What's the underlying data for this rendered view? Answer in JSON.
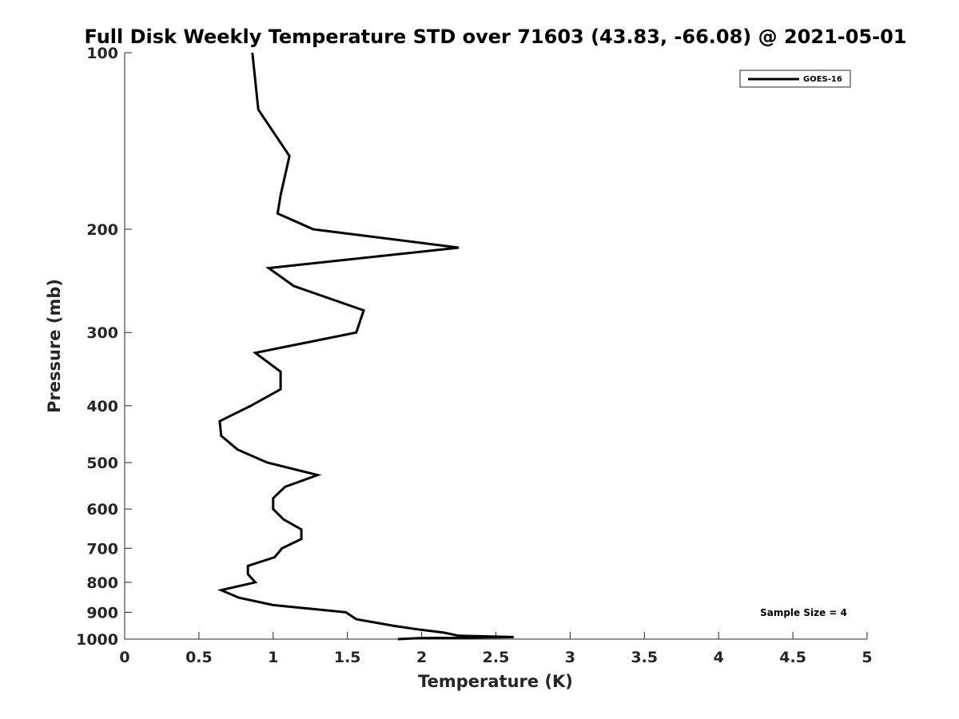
{
  "chart_data": {
    "type": "line",
    "title": "Full Disk Weekly Temperature STD over 71603 (43.83, -66.08) @ 2021-05-01",
    "xlabel": "Temperature (K)",
    "ylabel": "Pressure (mb)",
    "xlim": [
      0,
      5
    ],
    "ylim": [
      100,
      1000
    ],
    "yscale": "log",
    "y_reversed": true,
    "grid": false,
    "x_ticks": [
      0,
      0.5,
      1,
      1.5,
      2,
      2.5,
      3,
      3.5,
      4,
      4.5,
      5
    ],
    "x_tick_labels": [
      "0",
      "0.5",
      "1",
      "1.5",
      "2",
      "2.5",
      "3",
      "3.5",
      "4",
      "4.5",
      "5"
    ],
    "y_ticks": [
      100,
      200,
      300,
      400,
      500,
      600,
      700,
      800,
      900,
      1000
    ],
    "y_tick_labels": [
      "100",
      "200",
      "300",
      "400",
      "500",
      "600",
      "700",
      "800",
      "900",
      "1000"
    ],
    "legend_position": "top-right",
    "series": [
      {
        "name": "GOES-16",
        "color": "#000000",
        "x": [
          0.86,
          0.9,
          1.11,
          1.05,
          1.03,
          1.27,
          2.25,
          0.97,
          1.14,
          1.61,
          1.56,
          0.88,
          1.05,
          1.05,
          0.85,
          0.64,
          0.65,
          0.76,
          0.96,
          1.3,
          1.08,
          1.0,
          1.0,
          1.07,
          1.19,
          1.19,
          1.06,
          1.01,
          0.83,
          0.83,
          0.88,
          0.65,
          0.77,
          1.0,
          1.49,
          1.56,
          1.82,
          1.97,
          2.15,
          2.25,
          2.62,
          1.99,
          1.84
        ],
        "y": [
          100,
          125,
          150,
          175,
          188,
          200,
          215,
          233,
          250,
          275,
          300,
          325,
          350,
          375,
          400,
          425,
          450,
          475,
          500,
          525,
          550,
          575,
          600,
          625,
          650,
          675,
          700,
          725,
          750,
          775,
          800,
          825,
          850,
          875,
          900,
          925,
          950,
          962,
          975,
          987,
          992,
          996,
          1000
        ]
      }
    ],
    "annotations": [
      {
        "text": "Sample Size = 4",
        "position": "bottom-right"
      }
    ]
  }
}
